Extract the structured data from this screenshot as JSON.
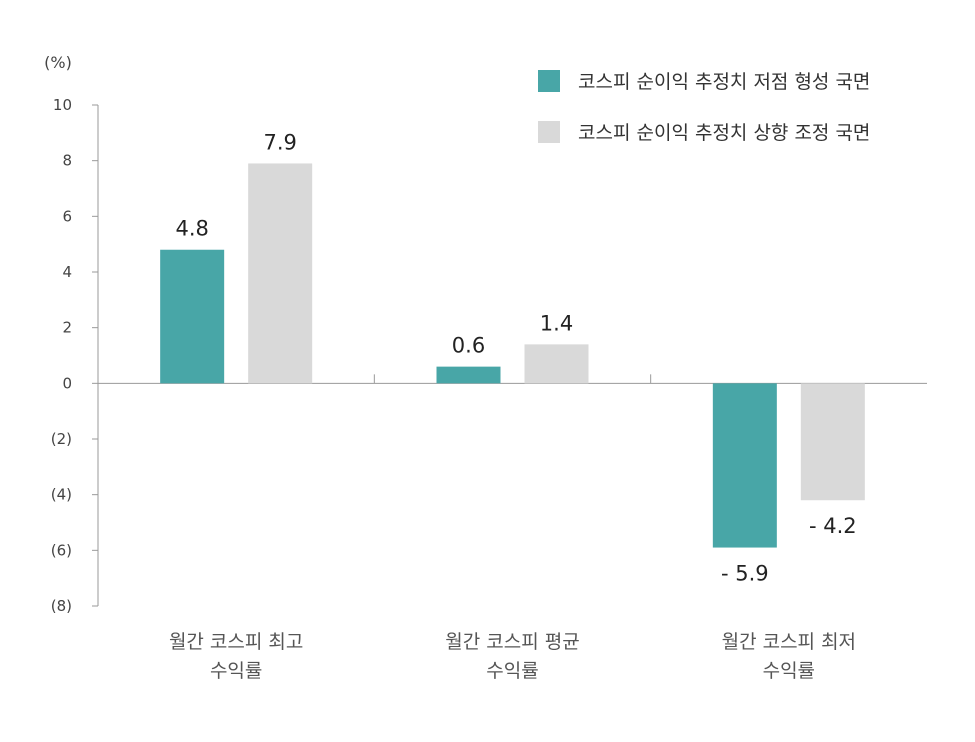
{
  "chart_data": {
    "type": "bar",
    "ylabel": "(%)",
    "ylim": [
      -8,
      10
    ],
    "yticks": [
      {
        "value": 10,
        "label": "10"
      },
      {
        "value": 8,
        "label": "8"
      },
      {
        "value": 6,
        "label": "6"
      },
      {
        "value": 4,
        "label": "4"
      },
      {
        "value": 2,
        "label": "2"
      },
      {
        "value": 0,
        "label": "0"
      },
      {
        "value": -2,
        "label": "(2)"
      },
      {
        "value": -4,
        "label": "(4)"
      },
      {
        "value": -6,
        "label": "(6)"
      },
      {
        "value": -8,
        "label": "(8)"
      }
    ],
    "categories": [
      [
        "월간 코스피 최고",
        "수익률"
      ],
      [
        "월간 코스피 평균",
        "수익률"
      ],
      [
        "월간 코스피 최저",
        "수익률"
      ]
    ],
    "series": [
      {
        "name": "코스피 순이익 추정치 저점 형성 국면",
        "color": "#48a6a7",
        "values": [
          4.8,
          0.6,
          -5.9
        ],
        "labels": [
          "4.8",
          "0.6",
          "- 5.9"
        ]
      },
      {
        "name": "코스피 순이익 추정치 상향 조정 국면",
        "color": "#d9d9d9",
        "values": [
          7.9,
          1.4,
          -4.2
        ],
        "labels": [
          "7.9",
          "1.4",
          "- 4.2"
        ]
      }
    ],
    "legend_position": "top-right",
    "grid": false
  }
}
